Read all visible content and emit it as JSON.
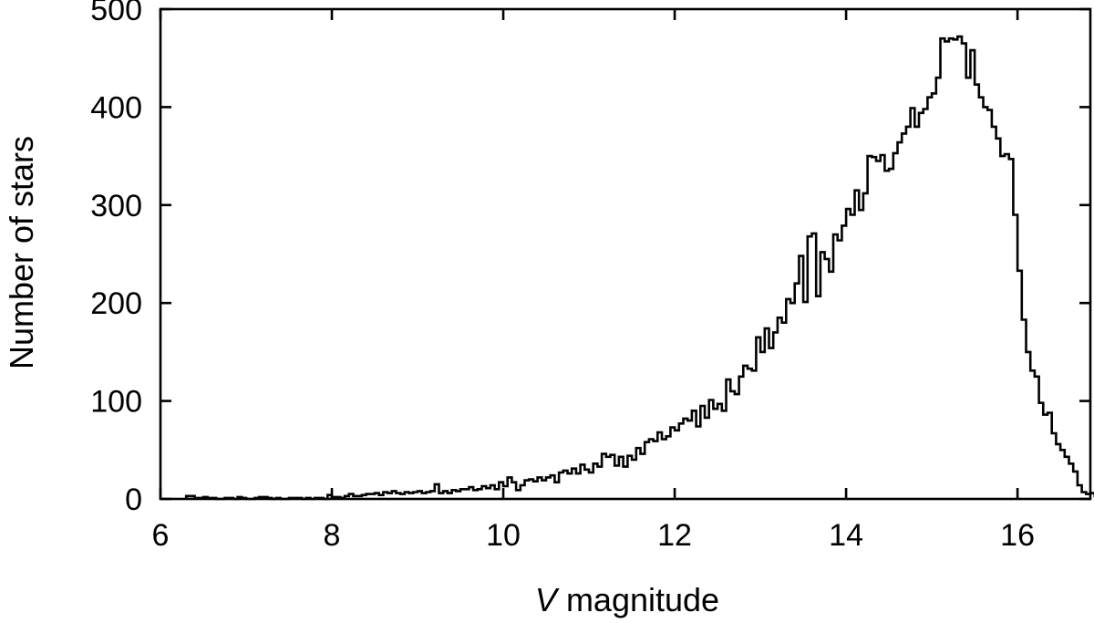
{
  "chart_data": {
    "type": "histogram",
    "xlabel": {
      "var": "V",
      "text": " magnitude"
    },
    "ylabel": "Number of stars",
    "xlim": [
      6.0,
      16.85
    ],
    "ylim": [
      0,
      500
    ],
    "xticks": [
      6,
      8,
      10,
      12,
      14,
      16
    ],
    "yticks": [
      0,
      100,
      200,
      300,
      400,
      500
    ],
    "bin_width": 0.05,
    "x_start": 6.3,
    "counts": [
      3,
      3,
      1,
      1,
      2,
      1,
      1,
      0,
      0,
      1,
      1,
      0,
      2,
      1,
      0,
      0,
      1,
      2,
      2,
      1,
      0,
      1,
      0,
      0,
      1,
      1,
      1,
      0,
      1,
      0,
      1,
      1,
      0,
      4,
      2,
      2,
      1,
      3,
      5,
      3,
      3,
      4,
      5,
      5,
      6,
      4,
      7,
      6,
      8,
      6,
      5,
      7,
      6,
      7,
      8,
      6,
      7,
      8,
      15,
      6,
      8,
      6,
      9,
      8,
      10,
      10,
      12,
      9,
      10,
      13,
      11,
      14,
      10,
      17,
      13,
      22,
      17,
      9,
      14,
      19,
      20,
      18,
      22,
      19,
      22,
      24,
      17,
      27,
      29,
      26,
      31,
      26,
      35,
      30,
      27,
      36,
      33,
      46,
      43,
      45,
      34,
      43,
      33,
      44,
      40,
      52,
      46,
      58,
      61,
      59,
      68,
      61,
      64,
      73,
      70,
      77,
      82,
      80,
      90,
      74,
      95,
      83,
      101,
      92,
      97,
      90,
      122,
      110,
      107,
      125,
      136,
      133,
      131,
      165,
      150,
      174,
      154,
      170,
      185,
      180,
      204,
      200,
      220,
      248,
      201,
      268,
      271,
      207,
      252,
      245,
      232,
      270,
      264,
      279,
      296,
      290,
      315,
      295,
      312,
      350,
      349,
      345,
      351,
      335,
      337,
      353,
      364,
      373,
      380,
      399,
      380,
      394,
      398,
      410,
      414,
      430,
      470,
      467,
      470,
      469,
      472,
      465,
      430,
      458,
      423,
      410,
      400,
      397,
      380,
      368,
      350,
      352,
      347,
      290,
      233,
      183,
      150,
      131,
      125,
      98,
      86,
      88,
      67,
      56,
      50,
      43,
      36,
      28,
      14,
      7,
      5,
      6,
      3,
      0
    ]
  }
}
